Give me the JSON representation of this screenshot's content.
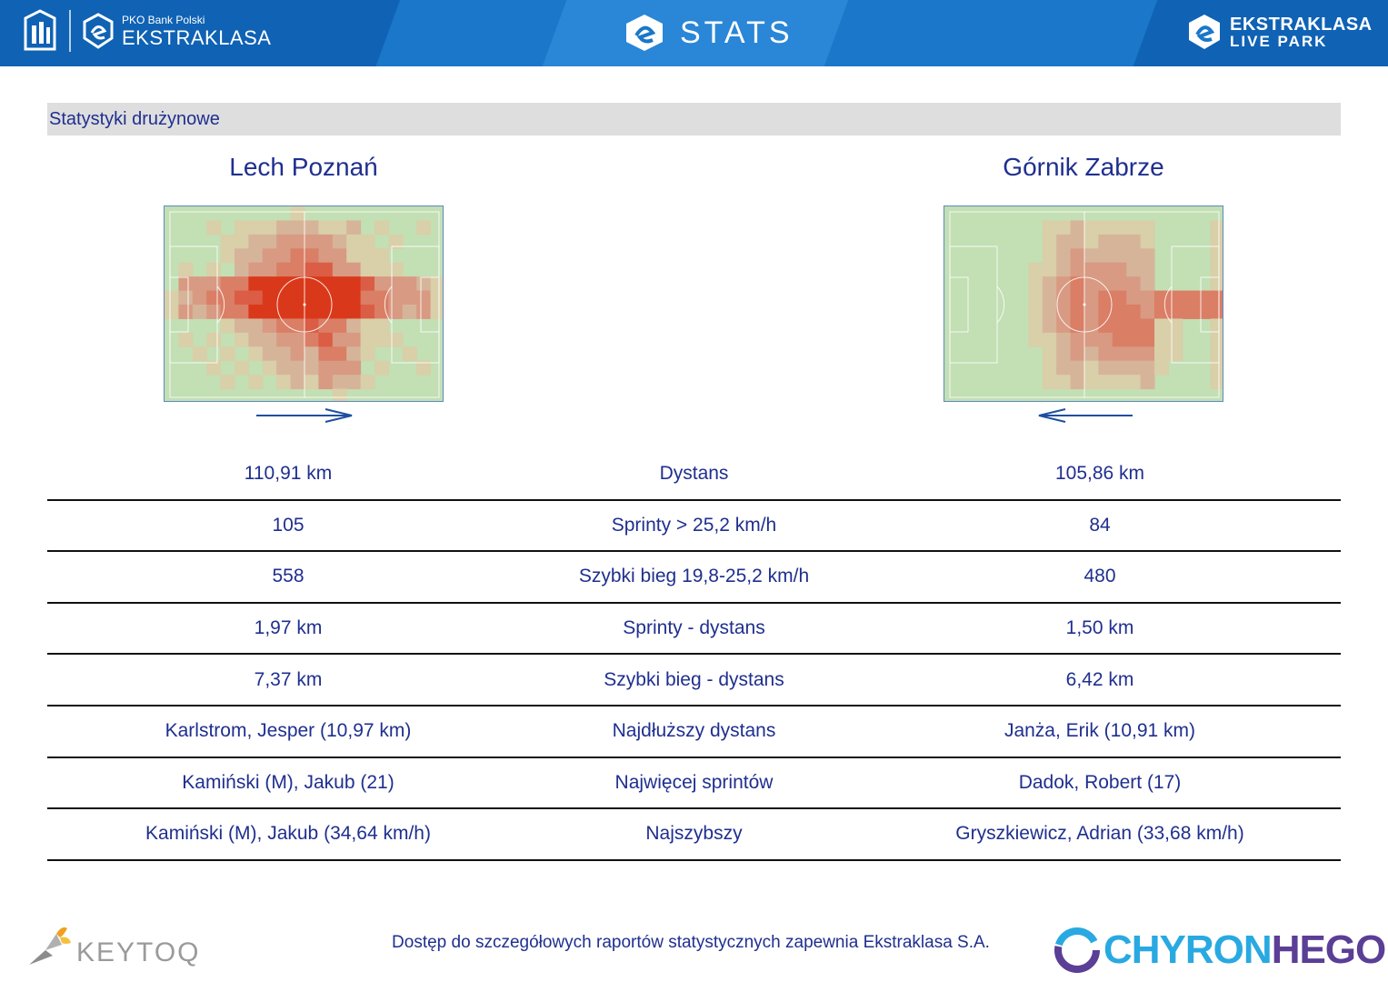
{
  "header": {
    "pko_small": "PKO Bank Polski",
    "pko_brand": "EKSTRAKLASA",
    "title": "STATS",
    "livepark_line1": "EKSTRAKLASA",
    "livepark_line2": "LIVE PARK",
    "icons": [
      "pko-bp-logo-icon",
      "ekstraklasa-logo-icon",
      "stats-logo-icon",
      "live-park-logo-icon"
    ]
  },
  "section": {
    "title": "Statystyki drużynowe"
  },
  "teams": {
    "home": {
      "name": "Lech Poznań",
      "direction": "right"
    },
    "away": {
      "name": "Górnik Zabrze",
      "direction": "left"
    }
  },
  "colors": {
    "header_blue": "#1a77c9",
    "text_navy": "#1f2f8f",
    "heat_high": "#d9391a",
    "pitch_green": "#c3dfb4"
  },
  "stats": [
    {
      "home": "110,91 km",
      "label": "Dystans",
      "away": "105,86 km"
    },
    {
      "home": "105",
      "label": "Sprinty > 25,2 km/h",
      "away": "84"
    },
    {
      "home": "558",
      "label": "Szybki bieg 19,8-25,2 km/h",
      "away": "480"
    },
    {
      "home": "1,97 km",
      "label": "Sprinty - dystans",
      "away": "1,50 km"
    },
    {
      "home": "7,37 km",
      "label": "Szybki bieg - dystans",
      "away": "6,42 km"
    },
    {
      "home": "Karlstrom, Jesper (10,97 km)",
      "label": "Najdłuższy dystans",
      "away": "Janża, Erik (10,91 km)"
    },
    {
      "home": "Kamiński (M), Jakub (21)",
      "label": "Najwięcej sprintów",
      "away": "Dadok, Robert (17)"
    },
    {
      "home": "Kamiński (M), Jakub (34,64 km/h)",
      "label": "Najszybszy",
      "away": "Gryszkiewicz, Adrian (33,68 km/h)"
    }
  ],
  "footer": {
    "keytoq": "KEYTOQ",
    "note": "Dostęp do szczegółowych raportów statystycznych zapewnia Ekstraklasa S.A.",
    "chyron_a": "CHYRON",
    "chyron_b": "HEGO"
  }
}
